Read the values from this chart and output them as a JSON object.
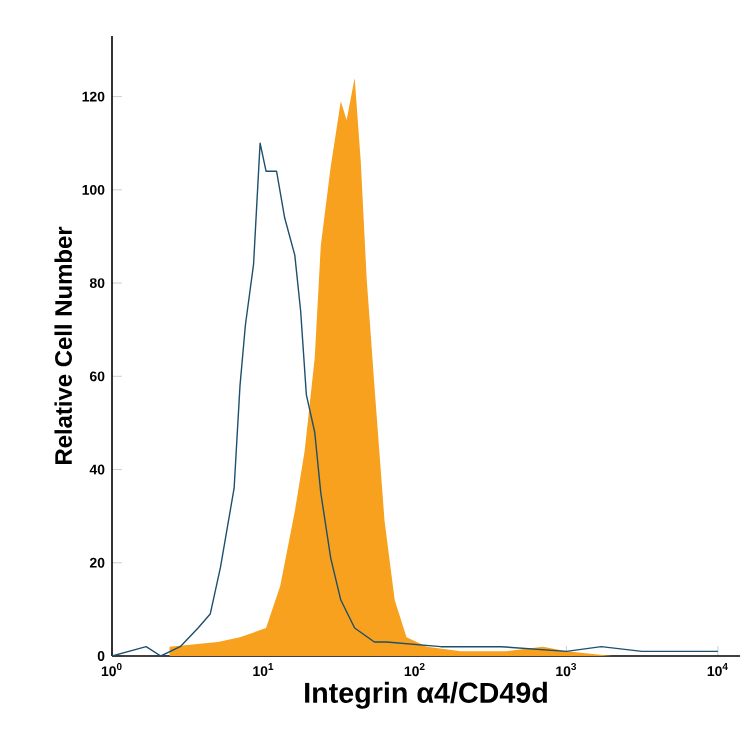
{
  "chart_data": {
    "type": "area",
    "xlabel": "Integrin α4/CD49d",
    "ylabel": "Relative Cell Number",
    "log": "x",
    "xlim": [
      1,
      14000
    ],
    "xticks": [
      {
        "value": 1,
        "label": "10$^{0}$"
      },
      {
        "value": 10,
        "label": "10$^{1}$"
      },
      {
        "value": 100,
        "label": "10$^{2}$"
      },
      {
        "value": 1000,
        "label": "10$^{3}$"
      },
      {
        "value": 10000,
        "label": "10$^{4}$"
      }
    ],
    "ylim": [
      0,
      133
    ],
    "yticks": [
      0,
      20,
      40,
      60,
      80,
      100,
      120
    ],
    "series": [
      {
        "color": "#f7a11e",
        "x": [
          2.4,
          5,
          7.0,
          10.4,
          12.9,
          16.1,
          18.7,
          21.8,
          23.9,
          27.8,
          32.4,
          35.4,
          40,
          43.9,
          48,
          54,
          63,
          73.5,
          88,
          120,
          200,
          400,
          700,
          1000,
          2000
        ],
        "values": [
          2,
          3,
          4,
          6,
          15,
          31,
          44,
          64,
          88,
          105,
          119,
          115,
          124,
          106,
          81,
          58,
          29,
          12,
          4,
          2,
          1,
          1,
          2,
          1,
          0
        ]
      },
      {
        "type": "line",
        "color": "#1d4f6e",
        "x": [
          1,
          1.68,
          2.1,
          2.82,
          3.7,
          4.45,
          5.2,
          6.4,
          7.0,
          7.6,
          8.6,
          9.5,
          10.4,
          12.2,
          13.8,
          16.1,
          17.6,
          19.2,
          21.8,
          23.9,
          27.8,
          32.4,
          40,
          54,
          65,
          148,
          370,
          1000,
          1700,
          3150,
          10000
        ],
        "values": [
          0,
          2,
          0,
          2,
          6,
          9,
          19,
          36,
          58,
          71,
          84,
          110,
          104,
          104,
          94,
          86,
          74,
          56,
          48,
          35,
          21,
          12,
          6,
          3,
          3,
          2,
          2,
          1,
          2,
          1,
          1
        ]
      }
    ]
  }
}
